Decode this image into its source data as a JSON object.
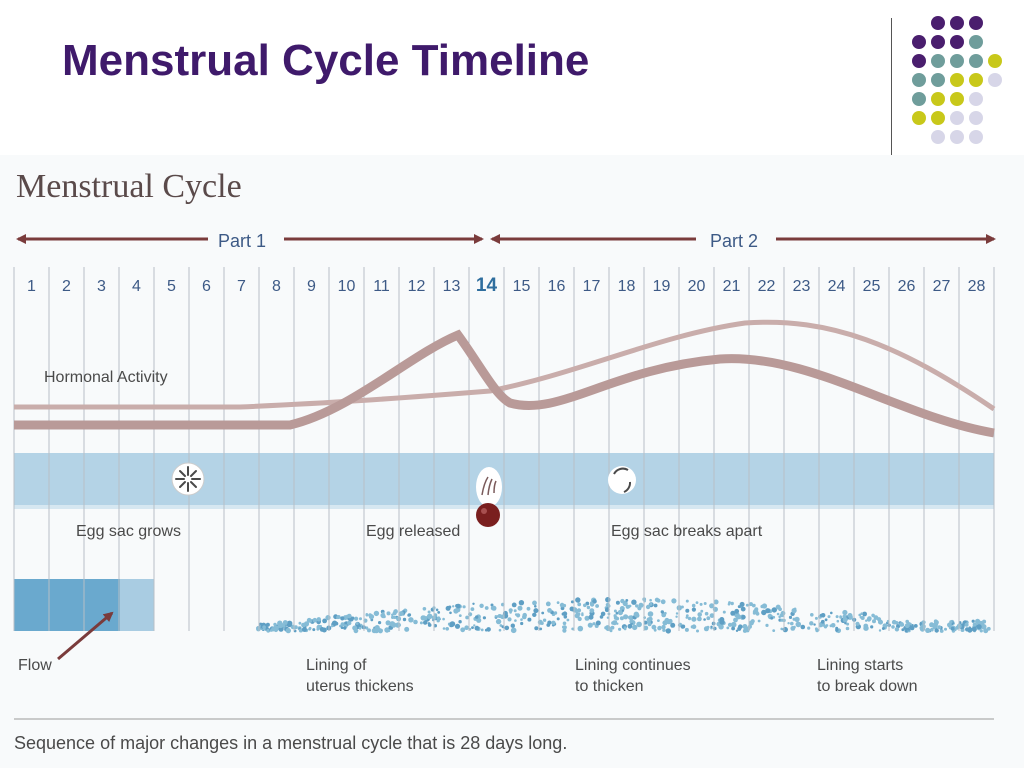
{
  "slide": {
    "title": "Menstrual Cycle Timeline"
  },
  "figure": {
    "heading": "Menstrual Cycle",
    "part1_label": "Part 1",
    "part2_label": "Part 2",
    "days": [
      "1",
      "2",
      "3",
      "4",
      "5",
      "6",
      "7",
      "8",
      "9",
      "10",
      "11",
      "12",
      "13",
      "14",
      "15",
      "16",
      "17",
      "18",
      "19",
      "20",
      "21",
      "22",
      "23",
      "24",
      "25",
      "26",
      "27",
      "28"
    ],
    "highlight_day": "14",
    "labels": {
      "hormonal_activity": "Hormonal Activity",
      "egg_sac_grows": "Egg sac grows",
      "egg_released": "Egg released",
      "egg_sac_breaks_apart": "Egg sac breaks apart",
      "flow": "Flow",
      "lining_thickens_line1": "Lining of",
      "lining_thickens_line2": "uterus thickens",
      "lining_continues_line1": "Lining continues",
      "lining_continues_line2": "to thicken",
      "lining_breaks_line1": "Lining starts",
      "lining_breaks_line2": "to break down"
    },
    "caption": "Sequence of major changes in a menstrual cycle that is 28 days long."
  },
  "colors": {
    "title": "#3f1a6b",
    "dot_purple": "#4a1e6e",
    "dot_teal": "#6f9d9b",
    "dot_yellow": "#c8c81a",
    "dot_lavender": "#d7d6e8",
    "arrow": "#7a3b3b",
    "hormone_curve": "#b99a98",
    "band": "#b4d3e6",
    "flow_dark": "#6aa9ce",
    "flow_light": "#a9cce2",
    "lining_dots": "#86bcd6",
    "egg": "#7a1f1f",
    "day_text": "#3d5a86",
    "label_text": "#4a4a4a"
  },
  "icons": [
    "egg-sac-icon",
    "released-egg-icon",
    "broken-egg-sac-icon",
    "flow-pointer-arrow-icon"
  ]
}
